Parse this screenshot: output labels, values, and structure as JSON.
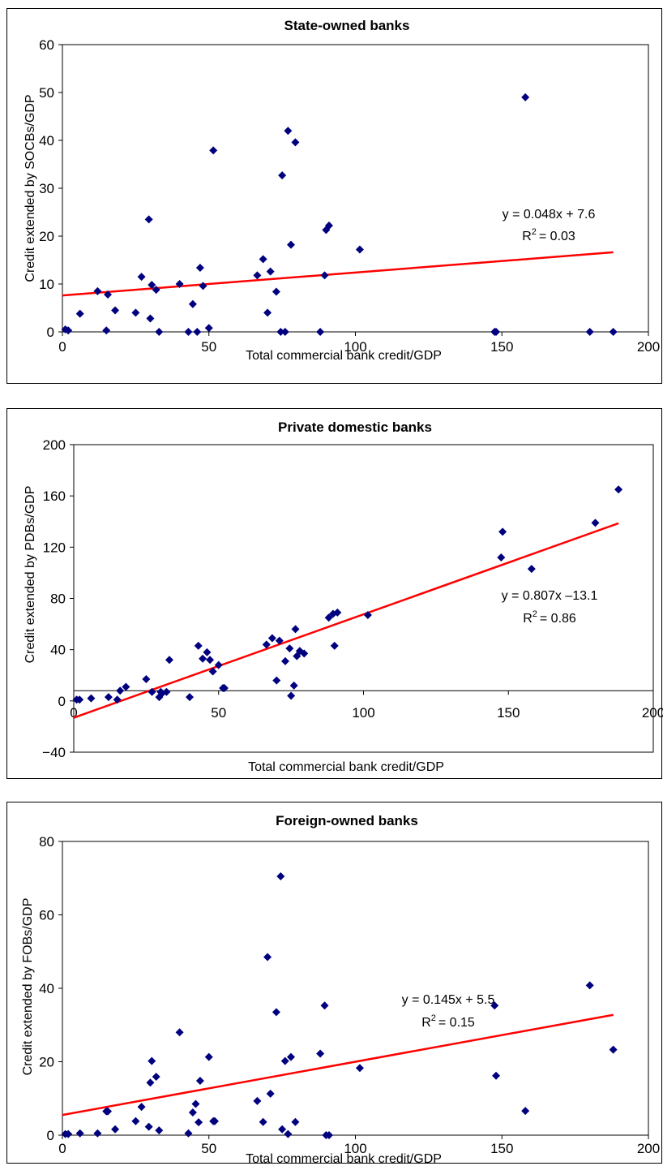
{
  "trendline_color": "#ff0000",
  "marker_color": "#00007f",
  "chart_data": [
    {
      "type": "scatter",
      "title": "State-owned banks",
      "xlabel": "Total commercial bank credit/GDP",
      "ylabel": "Credit extended by SOCBs/GDP",
      "xlim": [
        0,
        200
      ],
      "ylim": [
        0,
        60
      ],
      "xticks": [
        "0",
        "50",
        "100",
        "150",
        "200"
      ],
      "yticks": [
        "0",
        "10",
        "20",
        "30",
        "40",
        "50",
        "60"
      ],
      "grid": false,
      "equation": "y = 0.048x + 7.6",
      "r2_label": "R",
      "r2_exp": "2",
      "r2_value": "= 0.03",
      "trend": {
        "slope": 0.048,
        "intercept": 7.6,
        "x_start": 0,
        "x_end": 188
      },
      "x": [
        1,
        2,
        6,
        12,
        15,
        15.5,
        18,
        25,
        27,
        29.5,
        30,
        30.5,
        32,
        33,
        40,
        43,
        44.5,
        46,
        47,
        48,
        50,
        51.5,
        66.5,
        68.5,
        70,
        71,
        73,
        74.5,
        75,
        76,
        77,
        78,
        79.5,
        88,
        89.5,
        90,
        91,
        101.5,
        147.5,
        148,
        158,
        180,
        188
      ],
      "y": [
        0.5,
        0.3,
        3.8,
        8.5,
        0.3,
        7.8,
        4.5,
        4,
        11.5,
        23.5,
        2.8,
        9.8,
        8.8,
        0,
        10,
        0,
        5.8,
        0,
        13.4,
        9.6,
        0.8,
        37.9,
        11.8,
        15.2,
        4,
        12.6,
        8.4,
        0,
        32.7,
        0,
        42,
        18.2,
        39.6,
        0,
        11.8,
        21.3,
        22.2,
        17.2,
        0,
        0,
        49,
        0,
        0
      ]
    },
    {
      "type": "scatter",
      "title": "Private domestic banks",
      "xlabel": "Total commercial bank credit/GDP",
      "ylabel": "Credit extended by PDBs/GDP",
      "xlim": [
        0,
        200
      ],
      "ylim": [
        -40,
        200
      ],
      "xticks": [
        "0",
        "50",
        "100",
        "150",
        "200"
      ],
      "yticks": [
        "−40",
        "0",
        "40",
        "80",
        "120",
        "160",
        "200"
      ],
      "grid": false,
      "equation": "y = 0.807x –13.1",
      "r2_label": "R",
      "r2_exp": "2",
      "r2_value": "= 0.86",
      "trend": {
        "slope": 0.807,
        "intercept": -13.1,
        "x_start": 0,
        "x_end": 188
      },
      "x": [
        1,
        2,
        6,
        12,
        15,
        16,
        18,
        25,
        27,
        29.5,
        30,
        30.5,
        32,
        33,
        40,
        43,
        44.5,
        46,
        47,
        48,
        50,
        51.5,
        52,
        66.5,
        68.5,
        70,
        71,
        73,
        74.5,
        75,
        76,
        76.5,
        77,
        78,
        79.5,
        88,
        89.5,
        90,
        91,
        101.5,
        147.5,
        148,
        158,
        180,
        188
      ],
      "y": [
        1,
        1,
        2,
        3,
        1,
        8,
        11,
        17,
        7,
        3,
        7,
        6,
        7,
        32,
        3,
        43,
        33,
        38,
        32,
        23,
        28,
        10,
        10,
        44,
        49,
        16,
        47,
        31,
        41,
        4,
        12,
        56,
        35,
        39,
        37,
        65,
        68,
        43,
        69,
        67,
        112,
        132,
        103,
        139,
        165
      ]
    },
    {
      "type": "scatter",
      "title": "Foreign-owned banks",
      "xlabel": "Total commercial bank credit/GDP",
      "ylabel": "Credit extended by FOBs/GDP",
      "xlim": [
        0,
        200
      ],
      "ylim": [
        0,
        80
      ],
      "xticks": [
        "0",
        "50",
        "100",
        "150",
        "200"
      ],
      "yticks": [
        "0",
        "20",
        "40",
        "60",
        "80"
      ],
      "grid": false,
      "equation": "y = 0.145x + 5.5",
      "r2_label": "R",
      "r2_exp": "2",
      "r2_value": "= 0.15",
      "trend": {
        "slope": 0.145,
        "intercept": 5.5,
        "x_start": 0,
        "x_end": 188
      },
      "x": [
        1,
        2,
        6,
        12,
        15,
        15.5,
        18,
        25,
        27,
        29.5,
        30,
        30.5,
        32,
        33,
        40,
        43,
        44.5,
        45.5,
        46.5,
        47,
        50,
        51.5,
        52,
        66.5,
        68.5,
        70,
        71,
        73,
        74.5,
        75,
        76,
        77,
        78,
        79.5,
        88,
        89.5,
        90,
        91,
        101.5,
        147.5,
        148,
        158,
        180,
        188
      ],
      "y": [
        0.3,
        0.3,
        0.5,
        0.5,
        6.5,
        6.5,
        1.6,
        3.8,
        7.7,
        2.3,
        14.3,
        20.2,
        15.9,
        1.3,
        28,
        0.5,
        6.2,
        8.5,
        3.5,
        14.8,
        21.3,
        3.8,
        3.8,
        9.3,
        3.6,
        48.5,
        11.3,
        33.5,
        70.5,
        1.6,
        20.2,
        0.3,
        21.3,
        3.6,
        22.2,
        35.3,
        0,
        0,
        18.3,
        35.3,
        16.2,
        6.6,
        40.8,
        23.3
      ]
    }
  ]
}
